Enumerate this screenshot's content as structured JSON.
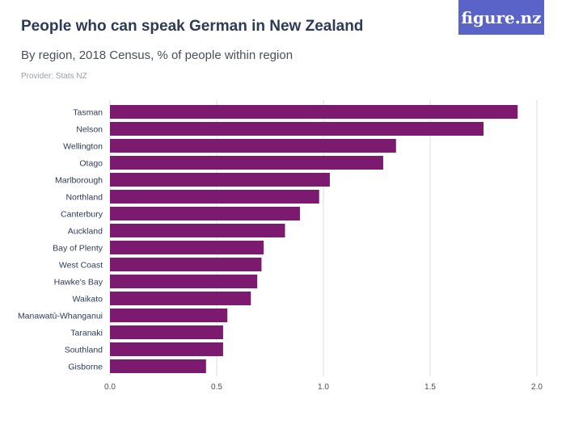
{
  "header": {
    "title": "People who can speak German in New Zealand",
    "subtitle": "By region, 2018 Census, % of people within region",
    "provider": "Provider: Stats NZ",
    "logo_text": "figure.nz"
  },
  "colors": {
    "bar": "#7b1a6e",
    "grid": "#dcdcdc",
    "logo_bg": "#5a63c8"
  },
  "chart_data": {
    "type": "bar",
    "orientation": "horizontal",
    "categories": [
      "Tasman",
      "Nelson",
      "Wellington",
      "Otago",
      "Marlborough",
      "Northland",
      "Canterbury",
      "Auckland",
      "Bay of Plenty",
      "West Coast",
      "Hawke's Bay",
      "Waikato",
      "Manawatū-Whanganui",
      "Taranaki",
      "Southland",
      "Gisborne"
    ],
    "values": [
      1.91,
      1.75,
      1.34,
      1.28,
      1.03,
      0.98,
      0.89,
      0.82,
      0.72,
      0.71,
      0.69,
      0.66,
      0.55,
      0.53,
      0.53,
      0.45
    ],
    "xlim": [
      0,
      2.0
    ],
    "xticks": [
      "0.0",
      "0.5",
      "1.0",
      "1.5",
      "2.0"
    ],
    "grid": true
  }
}
